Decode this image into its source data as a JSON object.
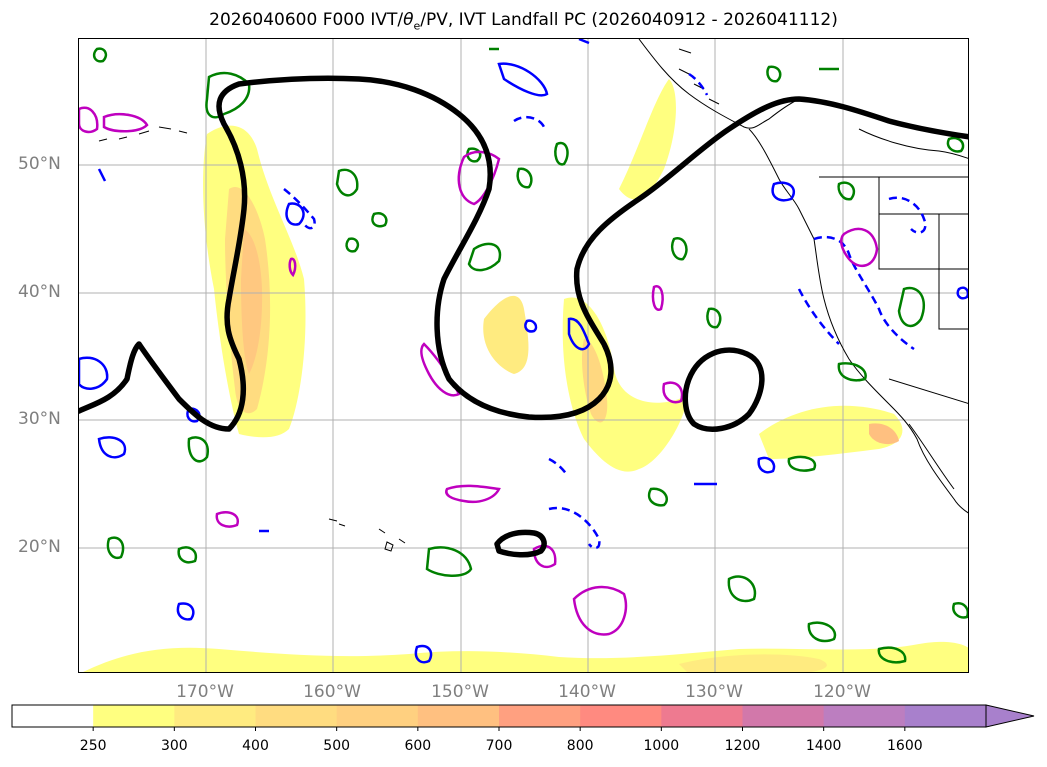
{
  "title": {
    "prefix": "2026040600 F000 IVT/",
    "theta": "θ",
    "theta_sub": "e",
    "suffix": "/PV, IVT Landfall PC (2026040912 - 2026041112)"
  },
  "latitude_labels": [
    "50°N",
    "40°N",
    "30°N",
    "20°N"
  ],
  "longitude_labels": [
    "170°W",
    "160°W",
    "150°W",
    "140°W",
    "130°W",
    "120°W"
  ],
  "colorbar": {
    "ticks": [
      "250",
      "300",
      "400",
      "500",
      "600",
      "700",
      "800",
      "1000",
      "1200",
      "1400",
      "1600"
    ],
    "colors": [
      "#ffffff",
      "#ffff80",
      "#ffeb80",
      "#ffdc80",
      "#ffd080",
      "#ffc080",
      "#ffa080",
      "#ff8a80",
      "#ee7a90",
      "#d278aa",
      "#bc7ec0",
      "#a880cc"
    ]
  },
  "colors": {
    "axis_label": "#7f7f7f",
    "grid": "#b0b0b0",
    "contour_landfall": "#000000",
    "contour_green": "#008000",
    "contour_blue": "#0000ff",
    "contour_magenta": "#bf00bf"
  }
}
